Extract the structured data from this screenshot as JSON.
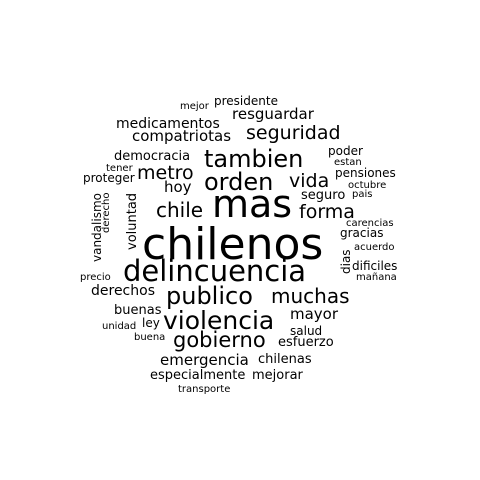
{
  "word_cloud": {
    "text_color": "#000000",
    "background_color": "#ffffff",
    "words": [
      "chilenos",
      "mas",
      "delincuencia",
      "publico",
      "violencia",
      "orden",
      "tambien",
      "muchas",
      "gobierno",
      "chile",
      "forma",
      "seguridad",
      "vida",
      "metro",
      "resguardar",
      "compatriotas",
      "medicamentos",
      "emergencia",
      "mayor",
      "derechos",
      "hoy",
      "democracia",
      "esfuerzo",
      "buenas",
      "especialmente",
      "mejorar",
      "chilenas",
      "pensiones",
      "seguro",
      "poder",
      "gracias",
      "dificiles",
      "ley",
      "salud",
      "presidente",
      "proteger",
      "vandalismo",
      "voluntad",
      "dias",
      "carencias",
      "estan",
      "pais",
      "octubre",
      "acuerdo",
      "mañana",
      "transporte",
      "precio",
      "unidad",
      "buena",
      "tener",
      "derecho",
      "mejor"
    ]
  }
}
